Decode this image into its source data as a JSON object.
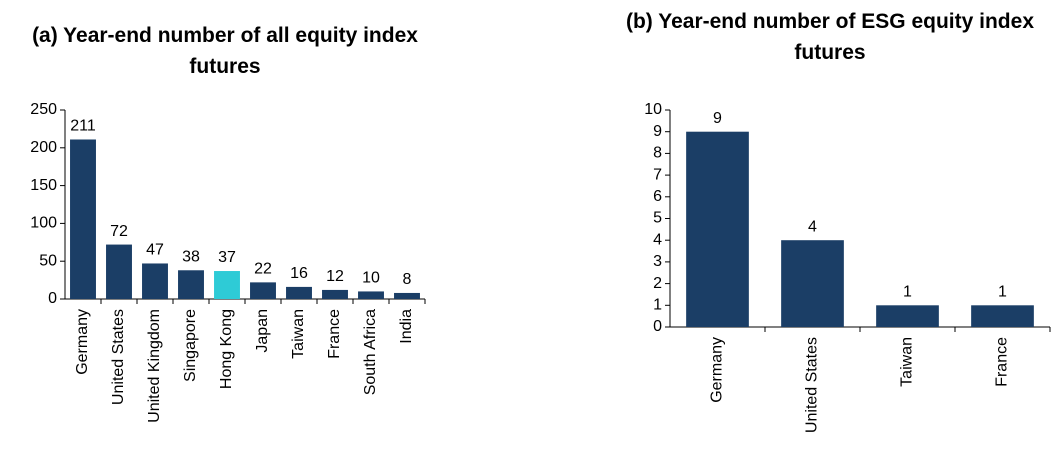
{
  "chart_data": [
    {
      "type": "bar",
      "title": "(a)  Year-end number of all equity index futures",
      "categories": [
        "Germany",
        "United States",
        "United Kingdom",
        "Singapore",
        "Hong Kong",
        "Japan",
        "Taiwan",
        "France",
        "South Africa",
        "India"
      ],
      "values": [
        211,
        72,
        47,
        38,
        37,
        22,
        16,
        12,
        10,
        8
      ],
      "colors": [
        "#1b3e66",
        "#1b3e66",
        "#1b3e66",
        "#1b3e66",
        "#2ecbd6",
        "#1b3e66",
        "#1b3e66",
        "#1b3e66",
        "#1b3e66",
        "#1b3e66"
      ],
      "ylim": [
        0,
        250
      ],
      "yticks": [
        0,
        50,
        100,
        150,
        200,
        250
      ],
      "grid": false
    },
    {
      "type": "bar",
      "title": "(b)  Year-end number of ESG equity index futures",
      "categories": [
        "Germany",
        "United States",
        "Taiwan",
        "France"
      ],
      "values": [
        9,
        4,
        1,
        1
      ],
      "color": "#1b3e66",
      "ylim": [
        0,
        10
      ],
      "yticks": [
        0,
        1,
        2,
        3,
        4,
        5,
        6,
        7,
        8,
        9,
        10
      ],
      "grid": false
    }
  ]
}
